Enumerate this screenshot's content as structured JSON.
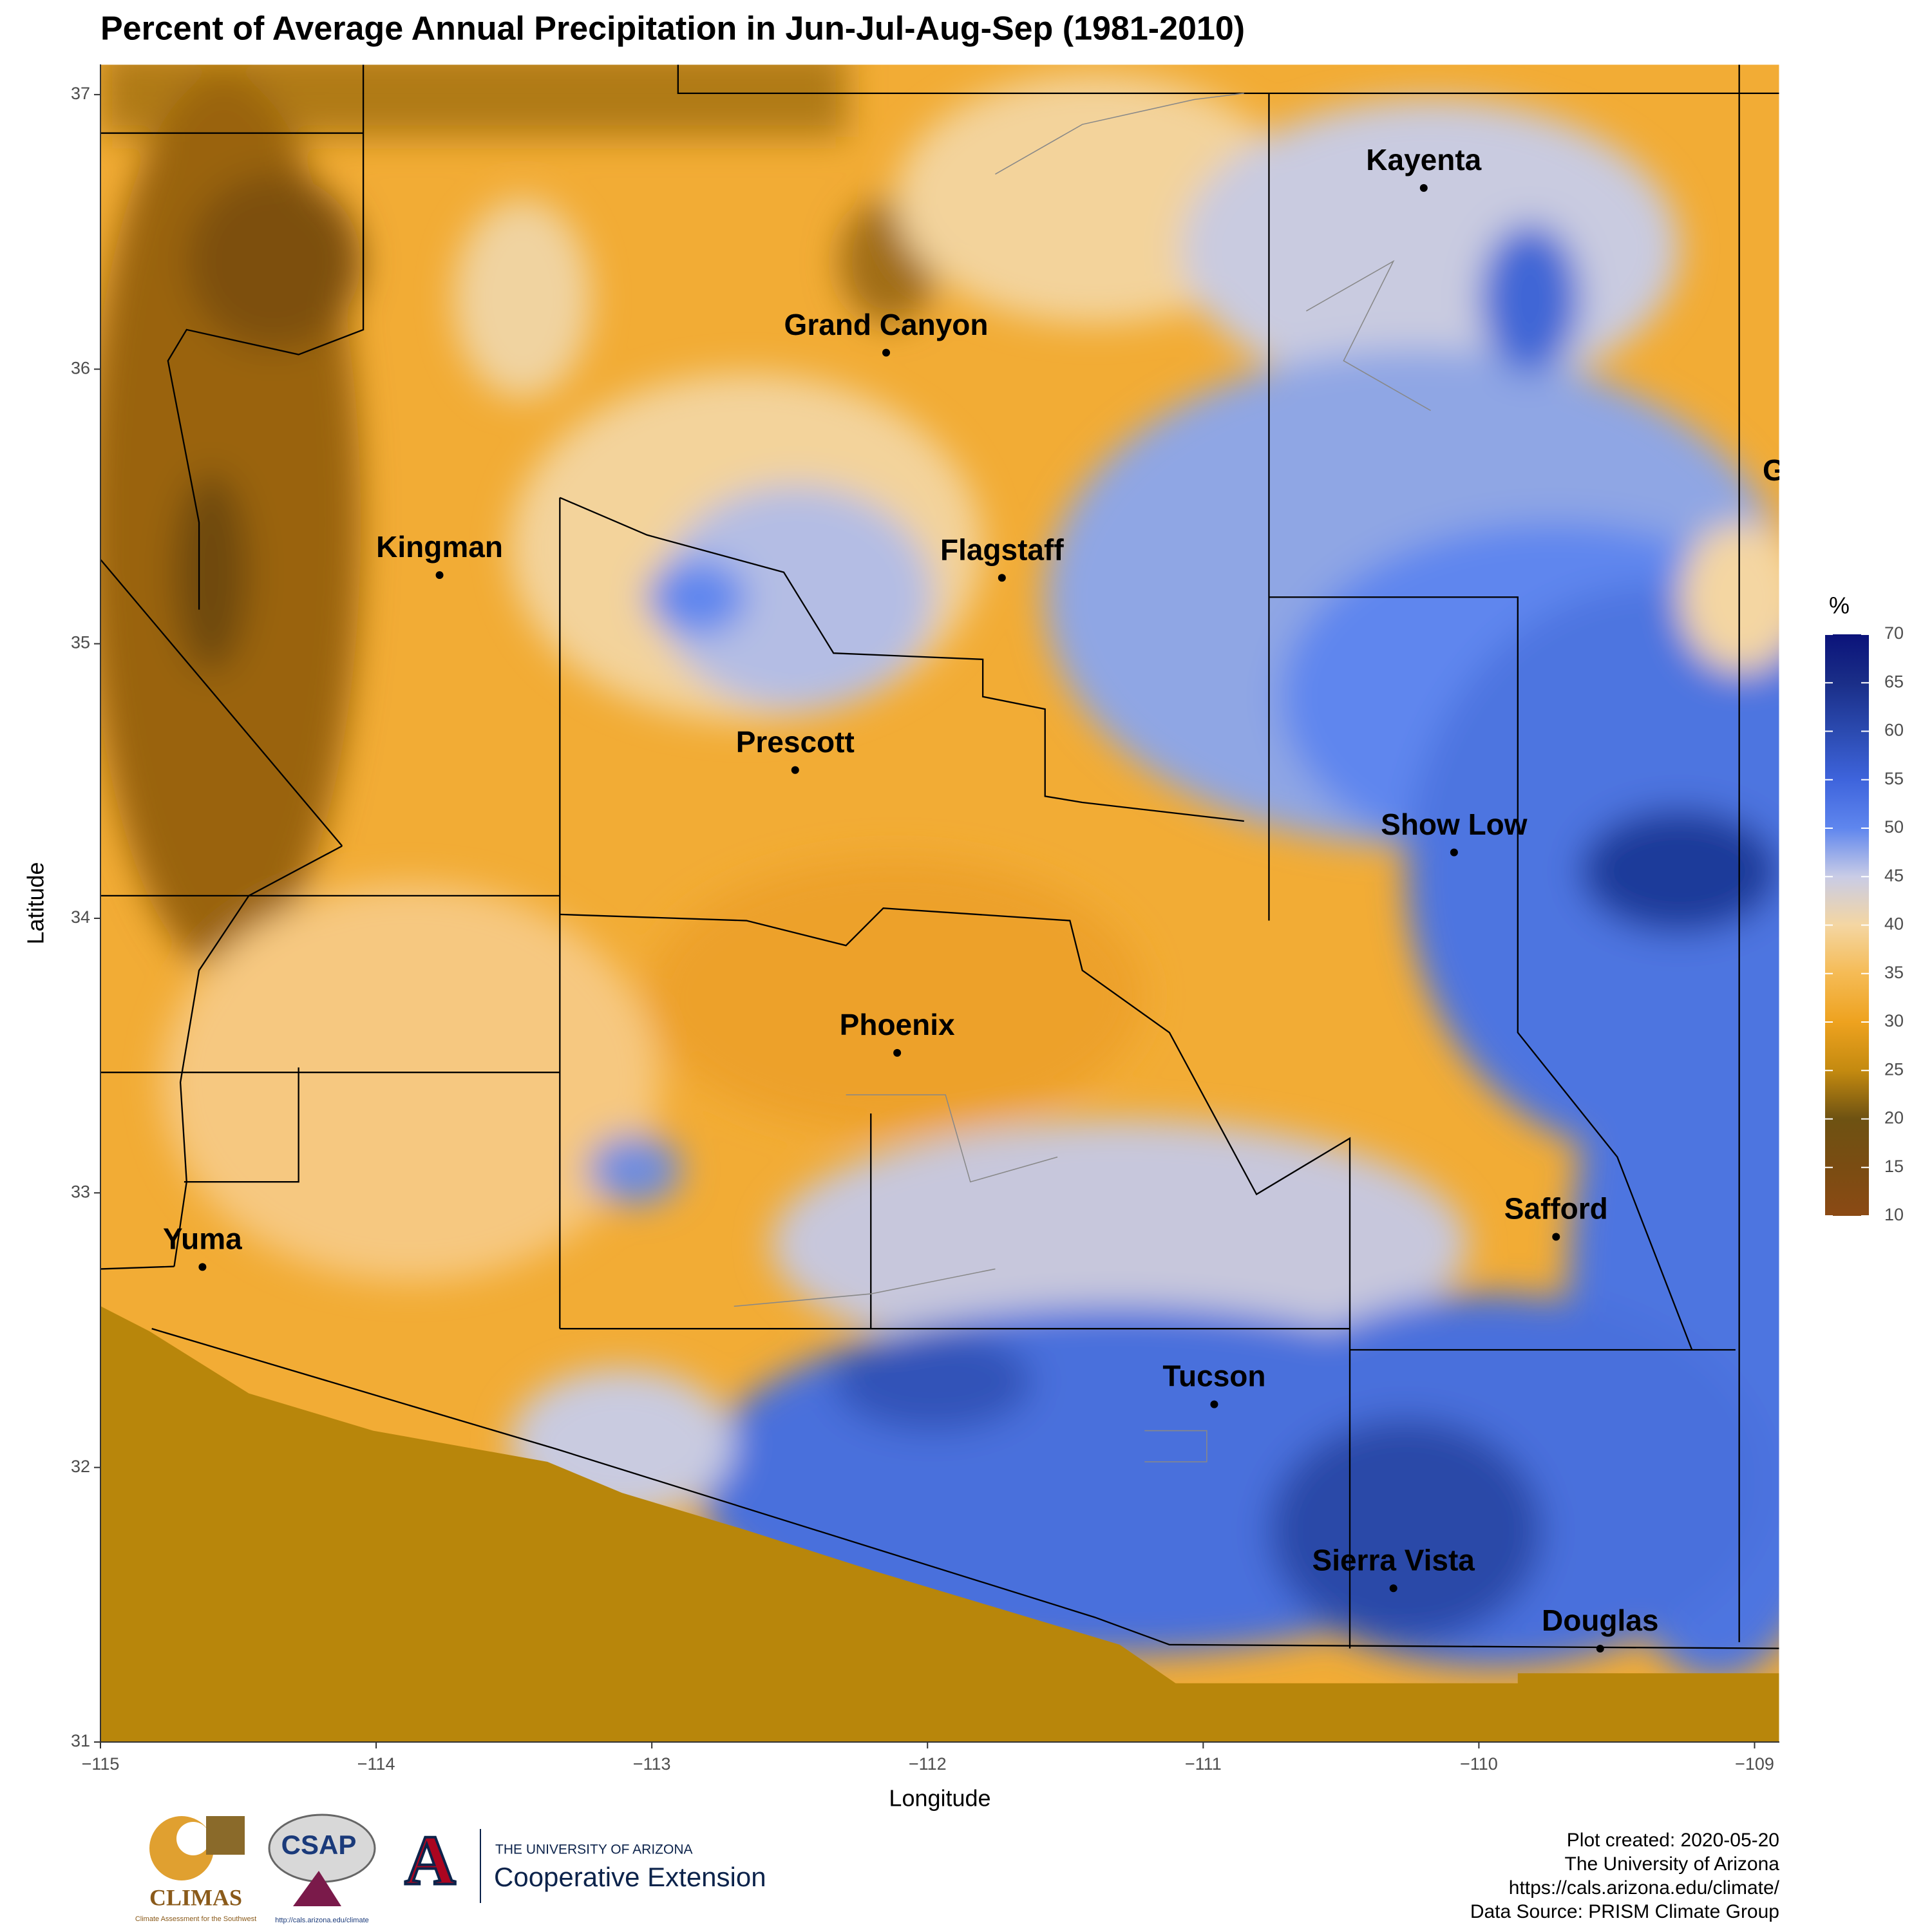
{
  "chart_data": {
    "type": "map",
    "title": "Percent of Average Annual Precipitation in Jun-Jul-Aug-Sep (1981-2010)",
    "x_label": "Longitude",
    "y_label": "Latitude",
    "xlim": [
      -115,
      -108.91
    ],
    "ylim": [
      31,
      37.11
    ],
    "xticks": [
      {
        "value": -115,
        "label": "−115"
      },
      {
        "value": -114,
        "label": "−114"
      },
      {
        "value": -113,
        "label": "−113"
      },
      {
        "value": -112,
        "label": "−112"
      },
      {
        "value": -111,
        "label": "−111"
      },
      {
        "value": -110,
        "label": "−110"
      },
      {
        "value": -109,
        "label": "−109"
      }
    ],
    "yticks": [
      31,
      32,
      33,
      34,
      35,
      36,
      37
    ],
    "cities": [
      {
        "name": "Kayenta",
        "lon": -110.2,
        "lat": 36.66
      },
      {
        "name": "Grand Canyon",
        "lon": -112.15,
        "lat": 36.06
      },
      {
        "name": "Kingman",
        "lon": -113.77,
        "lat": 35.25
      },
      {
        "name": "Flagstaff",
        "lon": -111.73,
        "lat": 35.24
      },
      {
        "name": "Prescott",
        "lon": -112.48,
        "lat": 34.54
      },
      {
        "name": "Show Low",
        "lon": -110.09,
        "lat": 34.24
      },
      {
        "name": "Phoenix",
        "lon": -112.11,
        "lat": 33.51
      },
      {
        "name": "Safford",
        "lon": -109.72,
        "lat": 32.84
      },
      {
        "name": "Yuma",
        "lon": -114.63,
        "lat": 32.73
      },
      {
        "name": "Tucson",
        "lon": -110.96,
        "lat": 32.23
      },
      {
        "name": "Sierra Vista",
        "lon": -110.31,
        "lat": 31.56
      },
      {
        "name": "Douglas",
        "lon": -109.56,
        "lat": 31.34
      }
    ],
    "annotations": [
      "G"
    ],
    "colorbar": {
      "title": "%",
      "lim": [
        10,
        70
      ],
      "ticks": [
        10,
        15,
        20,
        25,
        30,
        35,
        40,
        45,
        50,
        55,
        60,
        65,
        70
      ],
      "colors": [
        "#8b4a14",
        "#7a4c12",
        "#6e5212",
        "#c48a10",
        "#eea21f",
        "#f5bb55",
        "#f4d6a2",
        "#c9cce6",
        "#5f86ee",
        "#3e64dc",
        "#2b4ab0",
        "#1a2e88",
        "#0b137a"
      ]
    }
  },
  "footer": {
    "credits": [
      "Plot created: 2020-05-20",
      "The University of Arizona",
      "https://cals.arizona.edu/climate/",
      "Data Source: PRISM Climate Group"
    ],
    "climas": "CLIMAS",
    "climas_sub": "Climate Assessment for the Southwest",
    "csap": "CSAP",
    "csap_url": "http://cals.arizona.edu/climate",
    "ua_small": "THE UNIVERSITY OF ARIZONA",
    "ua_big": "Cooperative Extension"
  }
}
